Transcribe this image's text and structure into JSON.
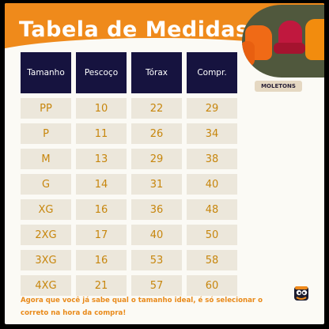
{
  "page": {
    "title": "Tabela de Medidas",
    "product_label": "MOLETONS",
    "footer": "Agora que você já sabe qual o tamanho ideal, é só selecionar o correto na hora da compra!"
  },
  "table": {
    "headers": [
      "Tamanho",
      "Pescoço",
      "Tórax",
      "Compr."
    ],
    "rows": [
      [
        "PP",
        "10",
        "22",
        "29"
      ],
      [
        "P",
        "11",
        "26",
        "34"
      ],
      [
        "M",
        "13",
        "29",
        "38"
      ],
      [
        "G",
        "14",
        "31",
        "40"
      ],
      [
        "XG",
        "16",
        "36",
        "48"
      ],
      [
        "2XG",
        "17",
        "40",
        "50"
      ],
      [
        "3XG",
        "16",
        "53",
        "58"
      ],
      [
        "4XG",
        "21",
        "57",
        "60"
      ]
    ]
  },
  "colors": {
    "brand_orange": "#ef8a1b",
    "header_navy": "#16133f",
    "cell_bg": "#ece7db",
    "value_text": "#c7860d"
  },
  "icons": {
    "logo": "brand-mascot-icon",
    "photo": "hoodies-photo"
  }
}
